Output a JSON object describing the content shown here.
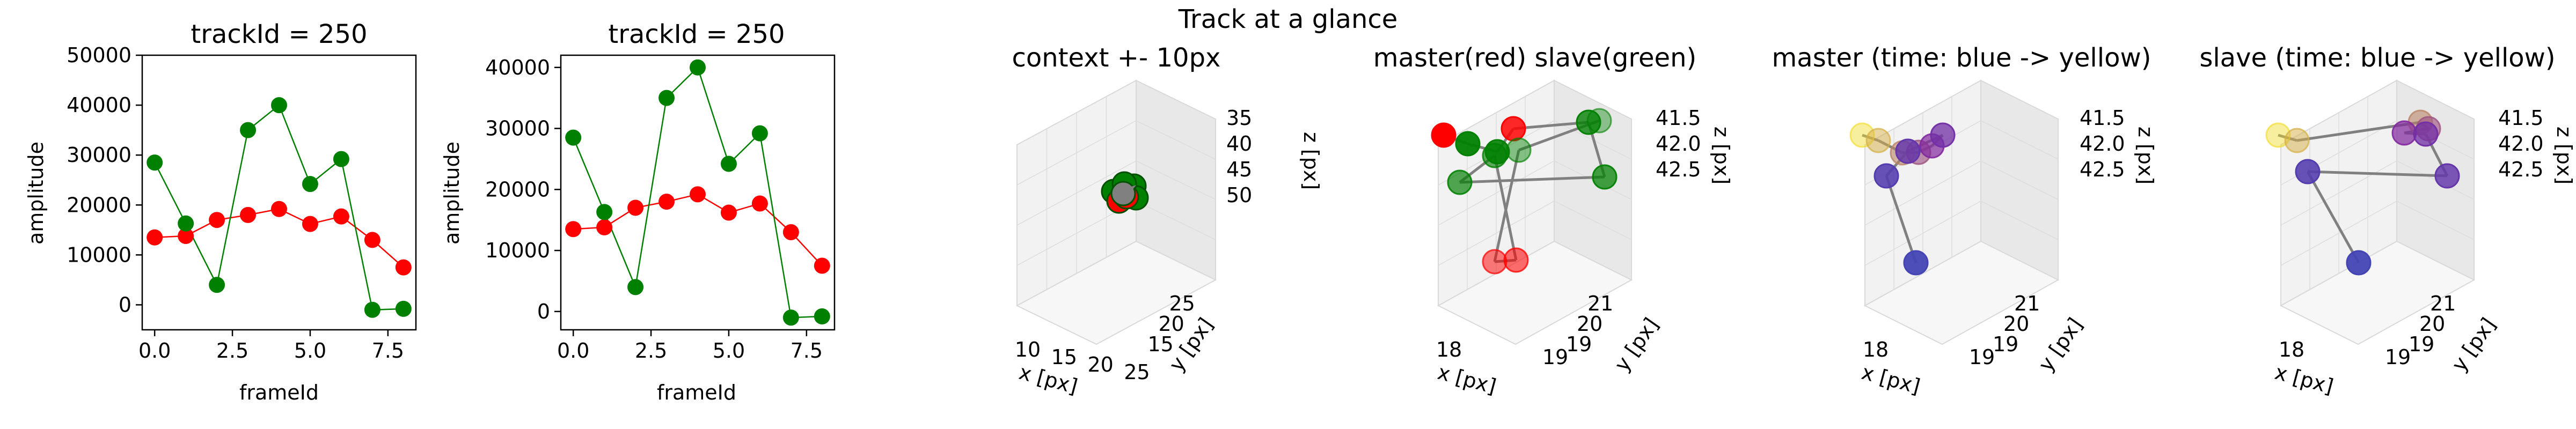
{
  "figure": {
    "suptitle": "Track at a glance"
  },
  "colors": {
    "red": "#ff0000",
    "green": "#008000",
    "gray": "#808080"
  },
  "chart_data": [
    {
      "type": "line",
      "title": "trackId = 250",
      "xlabel": "frameId",
      "ylabel": "amplitude",
      "xlim": [
        -0.4,
        8.4
      ],
      "ylim": [
        -5000,
        50000
      ],
      "xticks": [
        0.0,
        2.5,
        5.0,
        7.5
      ],
      "xtick_labels": [
        "0.0",
        "2.5",
        "5.0",
        "7.5"
      ],
      "yticks": [
        0,
        10000,
        20000,
        30000,
        40000,
        50000
      ],
      "ytick_labels": [
        "0",
        "10000",
        "20000",
        "30000",
        "40000",
        "50000"
      ],
      "x": [
        0,
        1,
        2,
        3,
        4,
        5,
        6,
        7,
        8
      ],
      "series": [
        {
          "color": "#ff0000",
          "values": [
            13500,
            13800,
            17000,
            18000,
            19200,
            16200,
            17700,
            13000,
            7500
          ]
        },
        {
          "color": "#008000",
          "values": [
            28500,
            16300,
            4000,
            35000,
            40000,
            24200,
            29200,
            -1000,
            -800
          ]
        }
      ]
    },
    {
      "type": "line",
      "title": "trackId = 250",
      "xlabel": "frameId",
      "ylabel": "amplitude",
      "xlim": [
        -0.4,
        8.4
      ],
      "ylim": [
        -3000,
        42000
      ],
      "xticks": [
        0.0,
        2.5,
        5.0,
        7.5
      ],
      "xtick_labels": [
        "0.0",
        "2.5",
        "5.0",
        "7.5"
      ],
      "yticks": [
        0,
        10000,
        20000,
        30000,
        40000
      ],
      "ytick_labels": [
        "0",
        "10000",
        "20000",
        "30000",
        "40000"
      ],
      "x": [
        0,
        1,
        2,
        3,
        4,
        5,
        6,
        7,
        8
      ],
      "series": [
        {
          "color": "#ff0000",
          "values": [
            13500,
            13800,
            17000,
            18000,
            19200,
            16200,
            17700,
            13000,
            7500
          ]
        },
        {
          "color": "#008000",
          "values": [
            28500,
            16300,
            4000,
            35000,
            40000,
            24200,
            29200,
            -1000,
            -800
          ]
        }
      ]
    },
    {
      "type": "scatter",
      "projection": "3d",
      "title": "context +- 10px",
      "xlabel": "x [px]",
      "ylabel": "y [px]",
      "zlabel": "z [px]",
      "xtick_labels": [
        "10",
        "15",
        "20",
        "25"
      ],
      "ytick_labels": [
        "15",
        "20",
        "25"
      ],
      "ztick_labels": [
        "35",
        "40",
        "45",
        "50"
      ],
      "points": [
        {
          "color": "#008000",
          "alpha": 1.0
        },
        {
          "color": "#008000",
          "alpha": 1.0
        },
        {
          "color": "#ff0000",
          "alpha": 1.0
        },
        {
          "color": "#008000",
          "alpha": 1.0
        },
        {
          "color": "#008000",
          "alpha": 1.0
        },
        {
          "color": "#ff0000",
          "alpha": 1.0
        },
        {
          "color": "#808080",
          "alpha": 1.0
        }
      ]
    },
    {
      "type": "scatter",
      "projection": "3d",
      "title": "master(red) slave(green)",
      "xlabel": "x [px]",
      "ylabel": "y [px]",
      "zlabel": "z [px]",
      "xtick_labels": [
        "18",
        "19"
      ],
      "ytick_labels": [
        "19",
        "20",
        "21"
      ],
      "ztick_labels": [
        "41.5",
        "42.0",
        "42.5"
      ]
    },
    {
      "type": "scatter",
      "projection": "3d",
      "title": "master (time: blue -> yellow)",
      "xlabel": "x [px]",
      "ylabel": "y [px]",
      "zlabel": "z [px]",
      "xtick_labels": [
        "18",
        "19"
      ],
      "ytick_labels": [
        "19",
        "20",
        "21"
      ],
      "ztick_labels": [
        "41.5",
        "42.0",
        "42.5"
      ]
    },
    {
      "type": "scatter",
      "projection": "3d",
      "title": "slave (time: blue -> yellow)",
      "xlabel": "x [px]",
      "ylabel": "y [px]",
      "zlabel": "z [px]",
      "xtick_labels": [
        "18",
        "19"
      ],
      "ytick_labels": [
        "19",
        "20",
        "21"
      ],
      "ztick_labels": [
        "41.5",
        "42.0",
        "42.5"
      ]
    }
  ]
}
